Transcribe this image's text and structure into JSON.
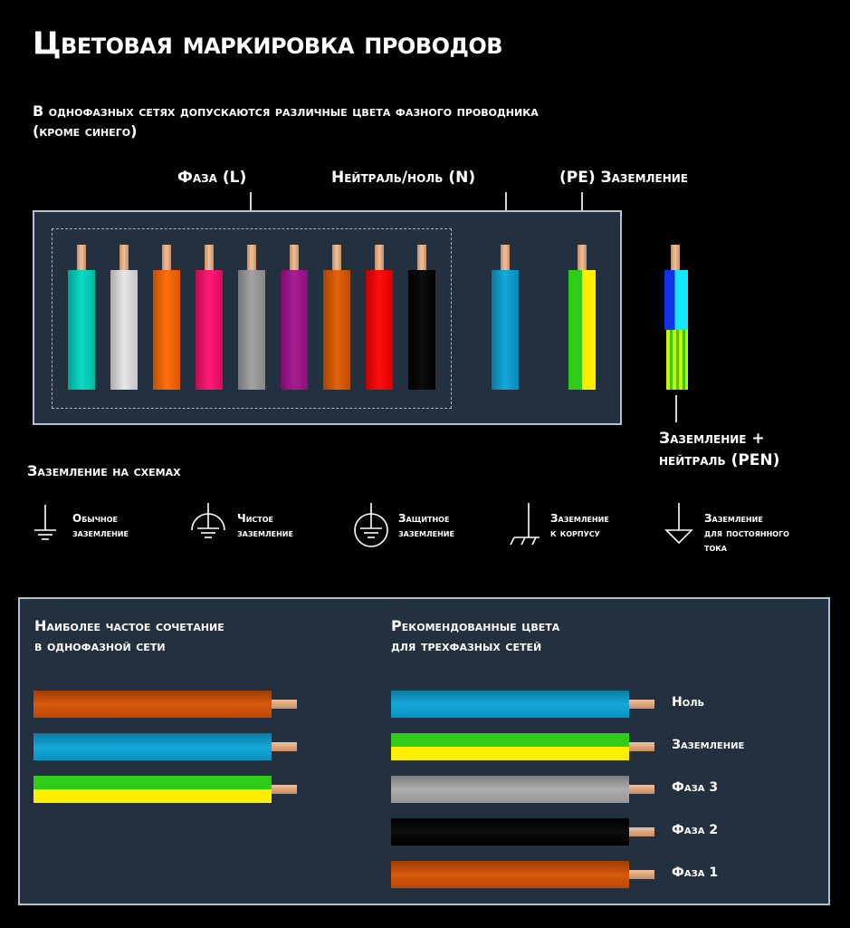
{
  "header": {
    "title": "Цветовая маркировка проводов",
    "subtitle_line1": "В однофазных сетях допускаются различные цвета фазного проводника",
    "subtitle_line2": "(кроме синего)"
  },
  "wire_panel": {
    "label_phase": "Фаза (L)",
    "label_neutral": "Нейтраль/ноль (N)",
    "label_pe": "(PE) Заземление",
    "phase_colors": [
      "#00d9c0",
      "#e6e6e6",
      "#ff6600",
      "#ff0f6e",
      "#9e9e9e",
      "#a3128c",
      "#e05a00",
      "#ff0000",
      "#000000"
    ],
    "neutral_color": "#0aa3d8",
    "pe_colors": [
      "#2fcc1a",
      "#ffee00"
    ],
    "pen_label_line1": "Заземление +",
    "pen_label_line2": "нейтраль (PEN)",
    "pen_top_colors": [
      "#1033e8",
      "#16e6ff"
    ],
    "pen_bottom_colors": [
      "#c8f000",
      "#34cc1a"
    ],
    "copper_color": "#e8b08a"
  },
  "grounding": {
    "title": "Заземление на схемах",
    "symbols": [
      {
        "icon": "ground-icon",
        "line1": "Обычное",
        "line2": "заземление",
        "line3": ""
      },
      {
        "icon": "clean-ground-icon",
        "line1": "Чистое",
        "line2": "заземление",
        "line3": ""
      },
      {
        "icon": "protective-ground-icon",
        "line1": "Защитное",
        "line2": "заземление",
        "line3": ""
      },
      {
        "icon": "chassis-ground-icon",
        "line1": "Заземление",
        "line2": "к корпусу",
        "line3": ""
      },
      {
        "icon": "dc-ground-icon",
        "line1": "Заземление",
        "line2": "для постоянного",
        "line3": "тока"
      }
    ]
  },
  "bottom_panel": {
    "left_title_line1": "Наиболее частое сочетание",
    "left_title_line2": "в однофазной сети",
    "left_wires": [
      {
        "name": "phase",
        "colors": [
          "#d45000"
        ]
      },
      {
        "name": "neutral",
        "colors": [
          "#0aa3d8"
        ]
      },
      {
        "name": "ground",
        "colors": [
          "#2fcc1a",
          "#ffee00"
        ]
      }
    ],
    "right_title_line1": "Рекомендованные цвета",
    "right_title_line2": "для трехфазных сетей",
    "right_wires": [
      {
        "label": "Ноль",
        "colors": [
          "#0aa3d8"
        ]
      },
      {
        "label": "Заземление",
        "colors": [
          "#2fcc1a",
          "#ffee00"
        ]
      },
      {
        "label": "Фаза 3",
        "colors": [
          "#a8a8a8"
        ]
      },
      {
        "label": "Фаза 2",
        "colors": [
          "#000000"
        ]
      },
      {
        "label": "Фаза 1",
        "colors": [
          "#d45000"
        ]
      }
    ]
  }
}
